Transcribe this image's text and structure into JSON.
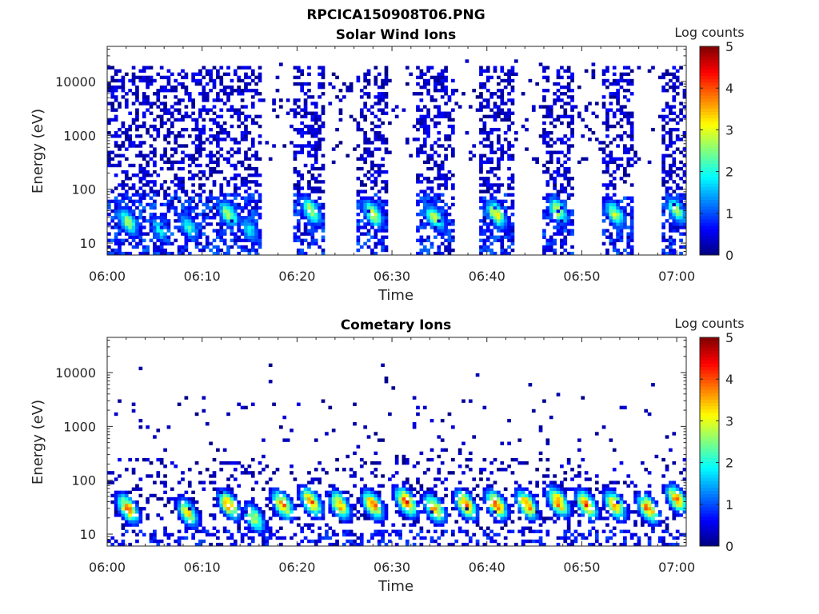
{
  "figure_title": "RPCICA150908T06.PNG",
  "chart_data": [
    {
      "type": "heatmap",
      "title": "Solar Wind Ions",
      "xlabel": "Time",
      "ylabel": "Energy (eV)",
      "x_tick_labels": [
        "06:00",
        "06:10",
        "06:20",
        "06:30",
        "06:40",
        "06:50",
        "07:00"
      ],
      "x_range_minutes": [
        0,
        61
      ],
      "y_scale": "log",
      "y_tick_labels": [
        "10",
        "100",
        "1000",
        "10000"
      ],
      "y_range_eV": [
        6,
        45000
      ],
      "colorbar_label": "Log counts",
      "colorbar_tick_labels": [
        "0",
        "1",
        "2",
        "3",
        "4",
        "5"
      ],
      "colorbar_range": [
        0,
        5
      ],
      "colormap": "jet",
      "empty_bands_min": [
        [
          16.3,
          19.5
        ],
        [
          23.0,
          26.2
        ],
        [
          29.5,
          32.5
        ],
        [
          36.5,
          39.3
        ],
        [
          42.8,
          45.8
        ],
        [
          49.0,
          52.0
        ],
        [
          55.5,
          58.5
        ]
      ],
      "sweeps": [
        {
          "center_min": 2.2,
          "peak_log_counts": 2.7,
          "peak_energy_eV": 25
        },
        {
          "center_min": 5.5,
          "peak_log_counts": 2.0,
          "peak_energy_eV": 18
        },
        {
          "center_min": 8.6,
          "peak_log_counts": 2.2,
          "peak_energy_eV": 20
        },
        {
          "center_min": 12.8,
          "peak_log_counts": 2.8,
          "peak_energy_eV": 35
        },
        {
          "center_min": 15.0,
          "peak_log_counts": 2.0,
          "peak_energy_eV": 18
        },
        {
          "center_min": 21.5,
          "peak_log_counts": 3.0,
          "peak_energy_eV": 40
        },
        {
          "center_min": 28.0,
          "peak_log_counts": 3.0,
          "peak_energy_eV": 35
        },
        {
          "center_min": 34.5,
          "peak_log_counts": 2.8,
          "peak_energy_eV": 30
        },
        {
          "center_min": 41.0,
          "peak_log_counts": 3.2,
          "peak_energy_eV": 35
        },
        {
          "center_min": 47.5,
          "peak_log_counts": 3.0,
          "peak_energy_eV": 40
        },
        {
          "center_min": 53.5,
          "peak_log_counts": 2.8,
          "peak_energy_eV": 35
        },
        {
          "center_min": 60.0,
          "peak_log_counts": 2.8,
          "peak_energy_eV": 40
        }
      ]
    },
    {
      "type": "heatmap",
      "title": "Cometary Ions",
      "xlabel": "Time",
      "ylabel": "Energy (eV)",
      "x_tick_labels": [
        "06:00",
        "06:10",
        "06:20",
        "06:30",
        "06:40",
        "06:50",
        "07:00"
      ],
      "x_range_minutes": [
        0,
        61
      ],
      "y_scale": "log",
      "y_tick_labels": [
        "10",
        "100",
        "1000",
        "10000"
      ],
      "y_range_eV": [
        6,
        45000
      ],
      "colorbar_label": "Log counts",
      "colorbar_tick_labels": [
        "0",
        "1",
        "2",
        "3",
        "4",
        "5"
      ],
      "colorbar_range": [
        0,
        5
      ],
      "colormap": "jet",
      "sweeps": [
        {
          "center_min": 2.2,
          "peak_log_counts": 3.8,
          "peak_energy_eV": 30
        },
        {
          "center_min": 8.5,
          "peak_log_counts": 3.3,
          "peak_energy_eV": 25
        },
        {
          "center_min": 12.8,
          "peak_log_counts": 3.8,
          "peak_energy_eV": 35
        },
        {
          "center_min": 15.5,
          "peak_log_counts": 3.0,
          "peak_energy_eV": 20
        },
        {
          "center_min": 18.5,
          "peak_log_counts": 3.8,
          "peak_energy_eV": 35
        },
        {
          "center_min": 21.5,
          "peak_log_counts": 4.0,
          "peak_energy_eV": 40
        },
        {
          "center_min": 24.5,
          "peak_log_counts": 3.8,
          "peak_energy_eV": 35
        },
        {
          "center_min": 28.0,
          "peak_log_counts": 4.0,
          "peak_energy_eV": 35
        },
        {
          "center_min": 31.5,
          "peak_log_counts": 4.2,
          "peak_energy_eV": 40
        },
        {
          "center_min": 34.5,
          "peak_log_counts": 3.8,
          "peak_energy_eV": 30
        },
        {
          "center_min": 37.8,
          "peak_log_counts": 4.0,
          "peak_energy_eV": 35
        },
        {
          "center_min": 41.0,
          "peak_log_counts": 4.2,
          "peak_energy_eV": 35
        },
        {
          "center_min": 44.2,
          "peak_log_counts": 4.0,
          "peak_energy_eV": 35
        },
        {
          "center_min": 47.5,
          "peak_log_counts": 4.2,
          "peak_energy_eV": 40
        },
        {
          "center_min": 50.5,
          "peak_log_counts": 4.0,
          "peak_energy_eV": 35
        },
        {
          "center_min": 53.5,
          "peak_log_counts": 3.8,
          "peak_energy_eV": 35
        },
        {
          "center_min": 57.0,
          "peak_log_counts": 4.0,
          "peak_energy_eV": 30
        },
        {
          "center_min": 60.0,
          "peak_log_counts": 3.8,
          "peak_energy_eV": 45
        }
      ]
    }
  ]
}
